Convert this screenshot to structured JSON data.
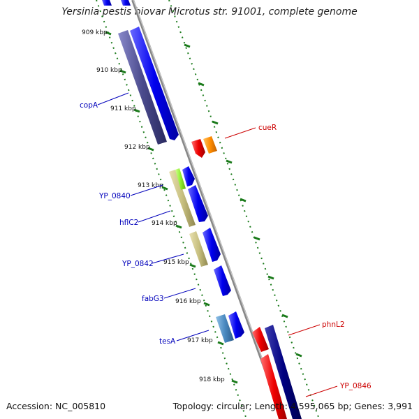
{
  "title": "Yersinia pestis biovar Microtus str. 91001, complete genome",
  "accession": "Accession: NC_005810",
  "summary": "Topology: circular; Length: 4,595,065 bp; Genes: 3,991",
  "kbp_labels": [
    "909 kbp",
    "910 kbp",
    "911 kbp",
    "912 kbp",
    "913 kbp",
    "914 kbp",
    "915 kbp",
    "916 kbp",
    "917 kbp",
    "918 kbp"
  ],
  "gene_labels_left": [
    "copA",
    "YP_0840",
    "hflC2",
    "YP_0842",
    "fabG3",
    "tesA"
  ],
  "gene_labels_right": [
    "cueR",
    "phnL2",
    "YP_0846"
  ],
  "colors": {
    "backbone": "#8a8a8a",
    "tick": "#1a7a1a",
    "forward_gene": "#0000ee",
    "reverse_gene": "#ee0000",
    "navy_gene": "#000080",
    "orange_gene": "#ff8c00",
    "label_left": "#0000bb",
    "label_right": "#cc0000",
    "slate_feature": "#4a4a8c",
    "khaki_feature": "#c8c080",
    "lime_feature": "#90ee30",
    "steel_feature": "#4a8ac0"
  }
}
